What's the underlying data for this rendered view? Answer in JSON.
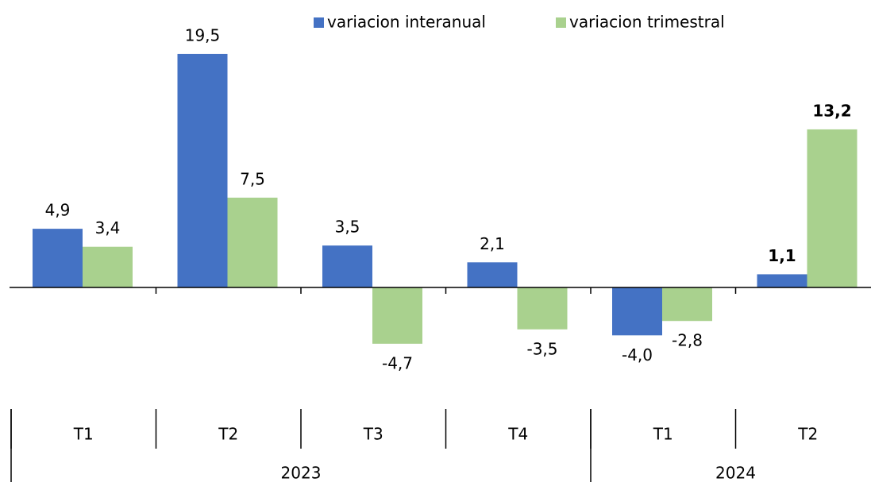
{
  "chart_data": {
    "type": "bar",
    "categories": [
      "T1",
      "T2",
      "T3",
      "T4",
      "T1",
      "T2"
    ],
    "groups": [
      {
        "label": "2023",
        "span": 4
      },
      {
        "label": "2024",
        "span": 2
      }
    ],
    "series": [
      {
        "name": "variacion interanual",
        "color": "#4472c4",
        "values": [
          4.9,
          19.5,
          3.5,
          2.1,
          -4.0,
          1.1
        ],
        "value_labels": [
          "4,9",
          "19,5",
          "3,5",
          "2,1",
          "-4,0",
          "1,1"
        ]
      },
      {
        "name": "variacion trimestral",
        "color": "#a9d18e",
        "values": [
          3.4,
          7.5,
          -4.7,
          -3.5,
          -2.8,
          13.2
        ],
        "value_labels": [
          "3,4",
          "7,5",
          "-4,7",
          "-3,5",
          "-2,8",
          "13,2"
        ]
      }
    ],
    "ylim": [
      -7,
      20
    ],
    "legend": "top"
  }
}
